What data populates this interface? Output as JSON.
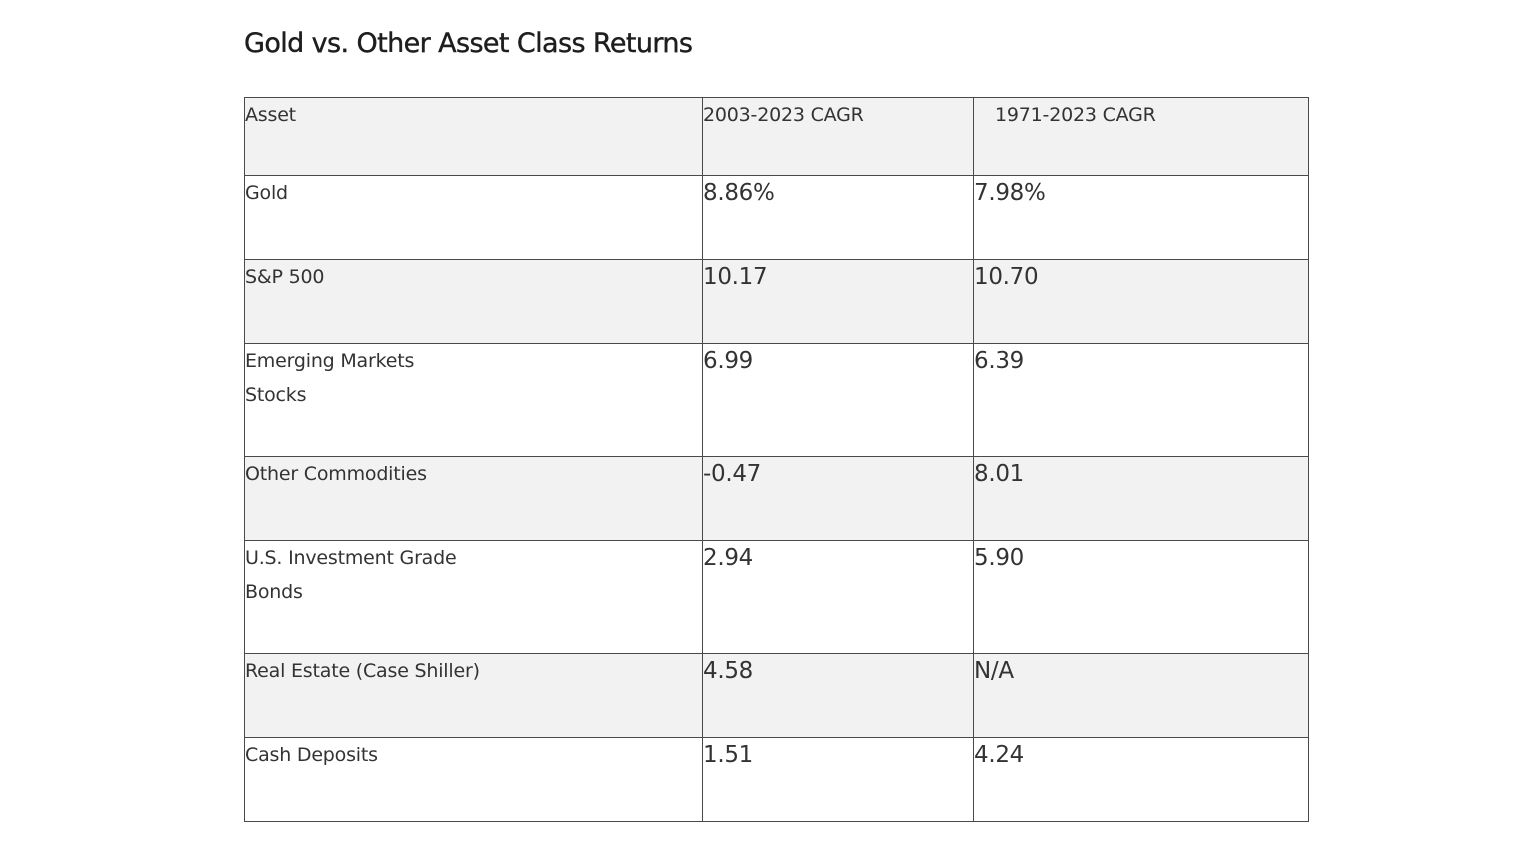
{
  "title": "Gold vs. Other Asset Class Returns",
  "table": {
    "headers": [
      "Asset",
      "2003-2023 CAGR",
      "1971-2023 CAGR"
    ],
    "rows": [
      {
        "asset": "Gold",
        "cagr_2003_2023": "8.86%",
        "cagr_1971_2023": "7.98%"
      },
      {
        "asset": "S&P 500",
        "cagr_2003_2023": "10.17",
        "cagr_1971_2023": "10.70"
      },
      {
        "asset_line1": "Emerging Markets",
        "asset_line2": "Stocks",
        "cagr_2003_2023": "6.99",
        "cagr_1971_2023": "6.39"
      },
      {
        "asset": "Other Commodities",
        "cagr_2003_2023": "-0.47",
        "cagr_1971_2023": "8.01"
      },
      {
        "asset_line1": "U.S. Investment Grade",
        "asset_line2": "Bonds",
        "cagr_2003_2023": "2.94",
        "cagr_1971_2023": "5.90"
      },
      {
        "asset": "Real Estate (Case Shiller)",
        "cagr_2003_2023": "4.58",
        "cagr_1971_2023": "N/A"
      },
      {
        "asset": "Cash Deposits",
        "cagr_2003_2023": "1.51",
        "cagr_1971_2023": "4.24"
      }
    ]
  }
}
